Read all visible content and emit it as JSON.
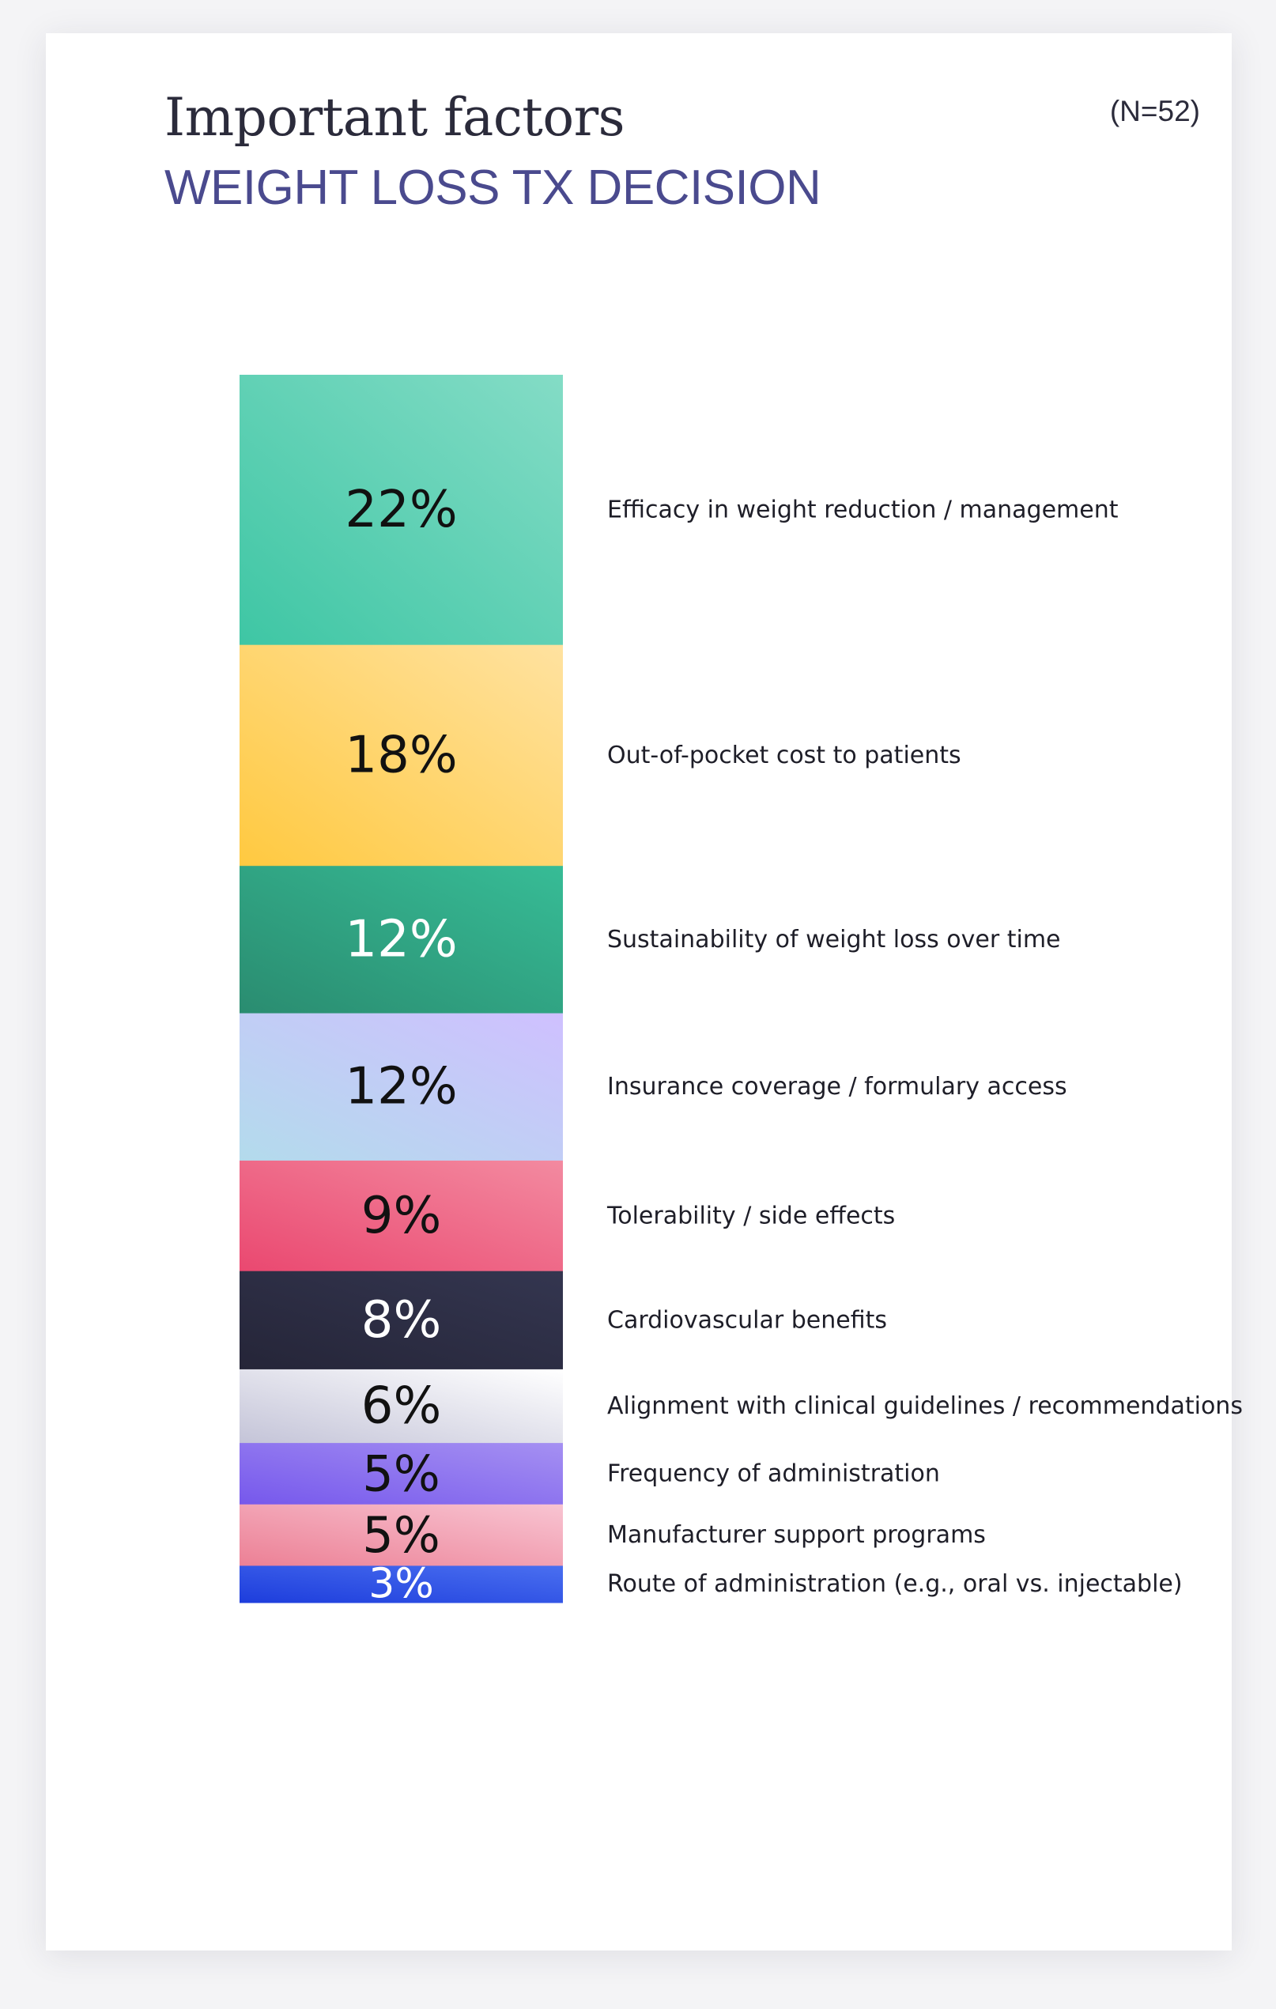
{
  "chart_data": {
    "type": "bar",
    "title": "Important factors",
    "subtitle": "WEIGHT LOSS TX DECISION",
    "sample_label": "(N=52)",
    "categories": [
      "Efficacy in weight reduction / management",
      "Out-of-pocket cost to patients",
      "Sustainability of weight loss over time",
      "Insurance coverage / formulary access",
      "Tolerability / side effects",
      "Cardiovascular benefits",
      "Alignment with clinical guidelines / recommendations",
      "Frequency of administration",
      "Manufacturer support programs",
      "Route of administration (e.g., oral vs. injectable)"
    ],
    "values": [
      22,
      18,
      12,
      12,
      9,
      8,
      6,
      5,
      5,
      3
    ],
    "value_labels": [
      "22%",
      "18%",
      "12%",
      "12%",
      "9%",
      "8%",
      "6%",
      "5%",
      "5%",
      "3%"
    ],
    "colors": [
      [
        "#3ec6a4",
        "#84dcc6"
      ],
      [
        "#ffc940",
        "#ffe2a0"
      ],
      [
        "#2a8c70",
        "#37bc96"
      ],
      [
        "#b3dbec",
        "#cfc0ff"
      ],
      [
        "#ea4870",
        "#f38aa0"
      ],
      [
        "#252538",
        "#343650"
      ],
      [
        "#c4c4d8",
        "#ffffff"
      ],
      [
        "#7658ec",
        "#a590f2"
      ],
      [
        "#ec8095",
        "#f8c4d2"
      ],
      [
        "#1d3ddc",
        "#4a6ff0"
      ]
    ],
    "label_colors": [
      "#111111",
      "#111111",
      "#ffffff",
      "#111111",
      "#111111",
      "#ffffff",
      "#111111",
      "#111111",
      "#111111",
      "#ffffff"
    ]
  }
}
